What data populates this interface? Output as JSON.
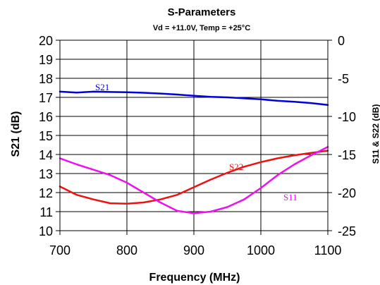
{
  "chart_data": {
    "type": "line",
    "title": "S-Parameters",
    "subtitle": "Vd = +11.0V, Temp = +25°C",
    "xlabel": "Frequency (MHz)",
    "ylabel_left": "S21 (dB)",
    "ylabel_right": "S11 & S22 (dB)",
    "xlim": [
      700,
      1100
    ],
    "ylim_left": [
      10,
      20
    ],
    "ylim_right": [
      -25,
      0
    ],
    "x_ticks": [
      "700",
      "800",
      "900",
      "1000",
      "1100"
    ],
    "y_ticks_left": [
      "10",
      "11",
      "12",
      "13",
      "14",
      "15",
      "16",
      "17",
      "18",
      "19",
      "20"
    ],
    "y_ticks_right": [
      "-25",
      "-20",
      "-15",
      "-10",
      "-5",
      "0"
    ],
    "grid": true,
    "colors": {
      "S21": "#0000dd",
      "S22": "#ee1111",
      "S11": "#ee11ee",
      "grid": "#000000"
    },
    "series": [
      {
        "name": "S21",
        "axis": "left",
        "x": [
          700,
          725,
          750,
          775,
          800,
          825,
          850,
          875,
          900,
          925,
          950,
          975,
          1000,
          1025,
          1050,
          1075,
          1100
        ],
        "y": [
          17.3,
          17.25,
          17.3,
          17.28,
          17.27,
          17.24,
          17.2,
          17.15,
          17.08,
          17.03,
          17.0,
          16.95,
          16.9,
          16.82,
          16.77,
          16.7,
          16.6
        ]
      },
      {
        "name": "S22",
        "axis": "right",
        "x": [
          700,
          725,
          750,
          775,
          800,
          825,
          850,
          875,
          900,
          925,
          950,
          975,
          1000,
          1025,
          1050,
          1075,
          1100
        ],
        "y": [
          -19.2,
          -20.3,
          -20.9,
          -21.4,
          -21.45,
          -21.3,
          -20.9,
          -20.3,
          -19.3,
          -18.3,
          -17.4,
          -16.6,
          -16.0,
          -15.5,
          -15.1,
          -14.8,
          -14.5
        ]
      },
      {
        "name": "S11",
        "axis": "right",
        "x": [
          700,
          725,
          750,
          775,
          800,
          825,
          850,
          875,
          900,
          925,
          950,
          975,
          1000,
          1025,
          1050,
          1075,
          1100
        ],
        "y": [
          -15.5,
          -16.3,
          -17.0,
          -17.7,
          -18.7,
          -20.0,
          -21.3,
          -22.4,
          -22.7,
          -22.5,
          -21.9,
          -20.9,
          -19.4,
          -17.7,
          -16.3,
          -15.1,
          -14.0
        ]
      }
    ],
    "series_labels": [
      "S21",
      "S22",
      "S11"
    ]
  }
}
